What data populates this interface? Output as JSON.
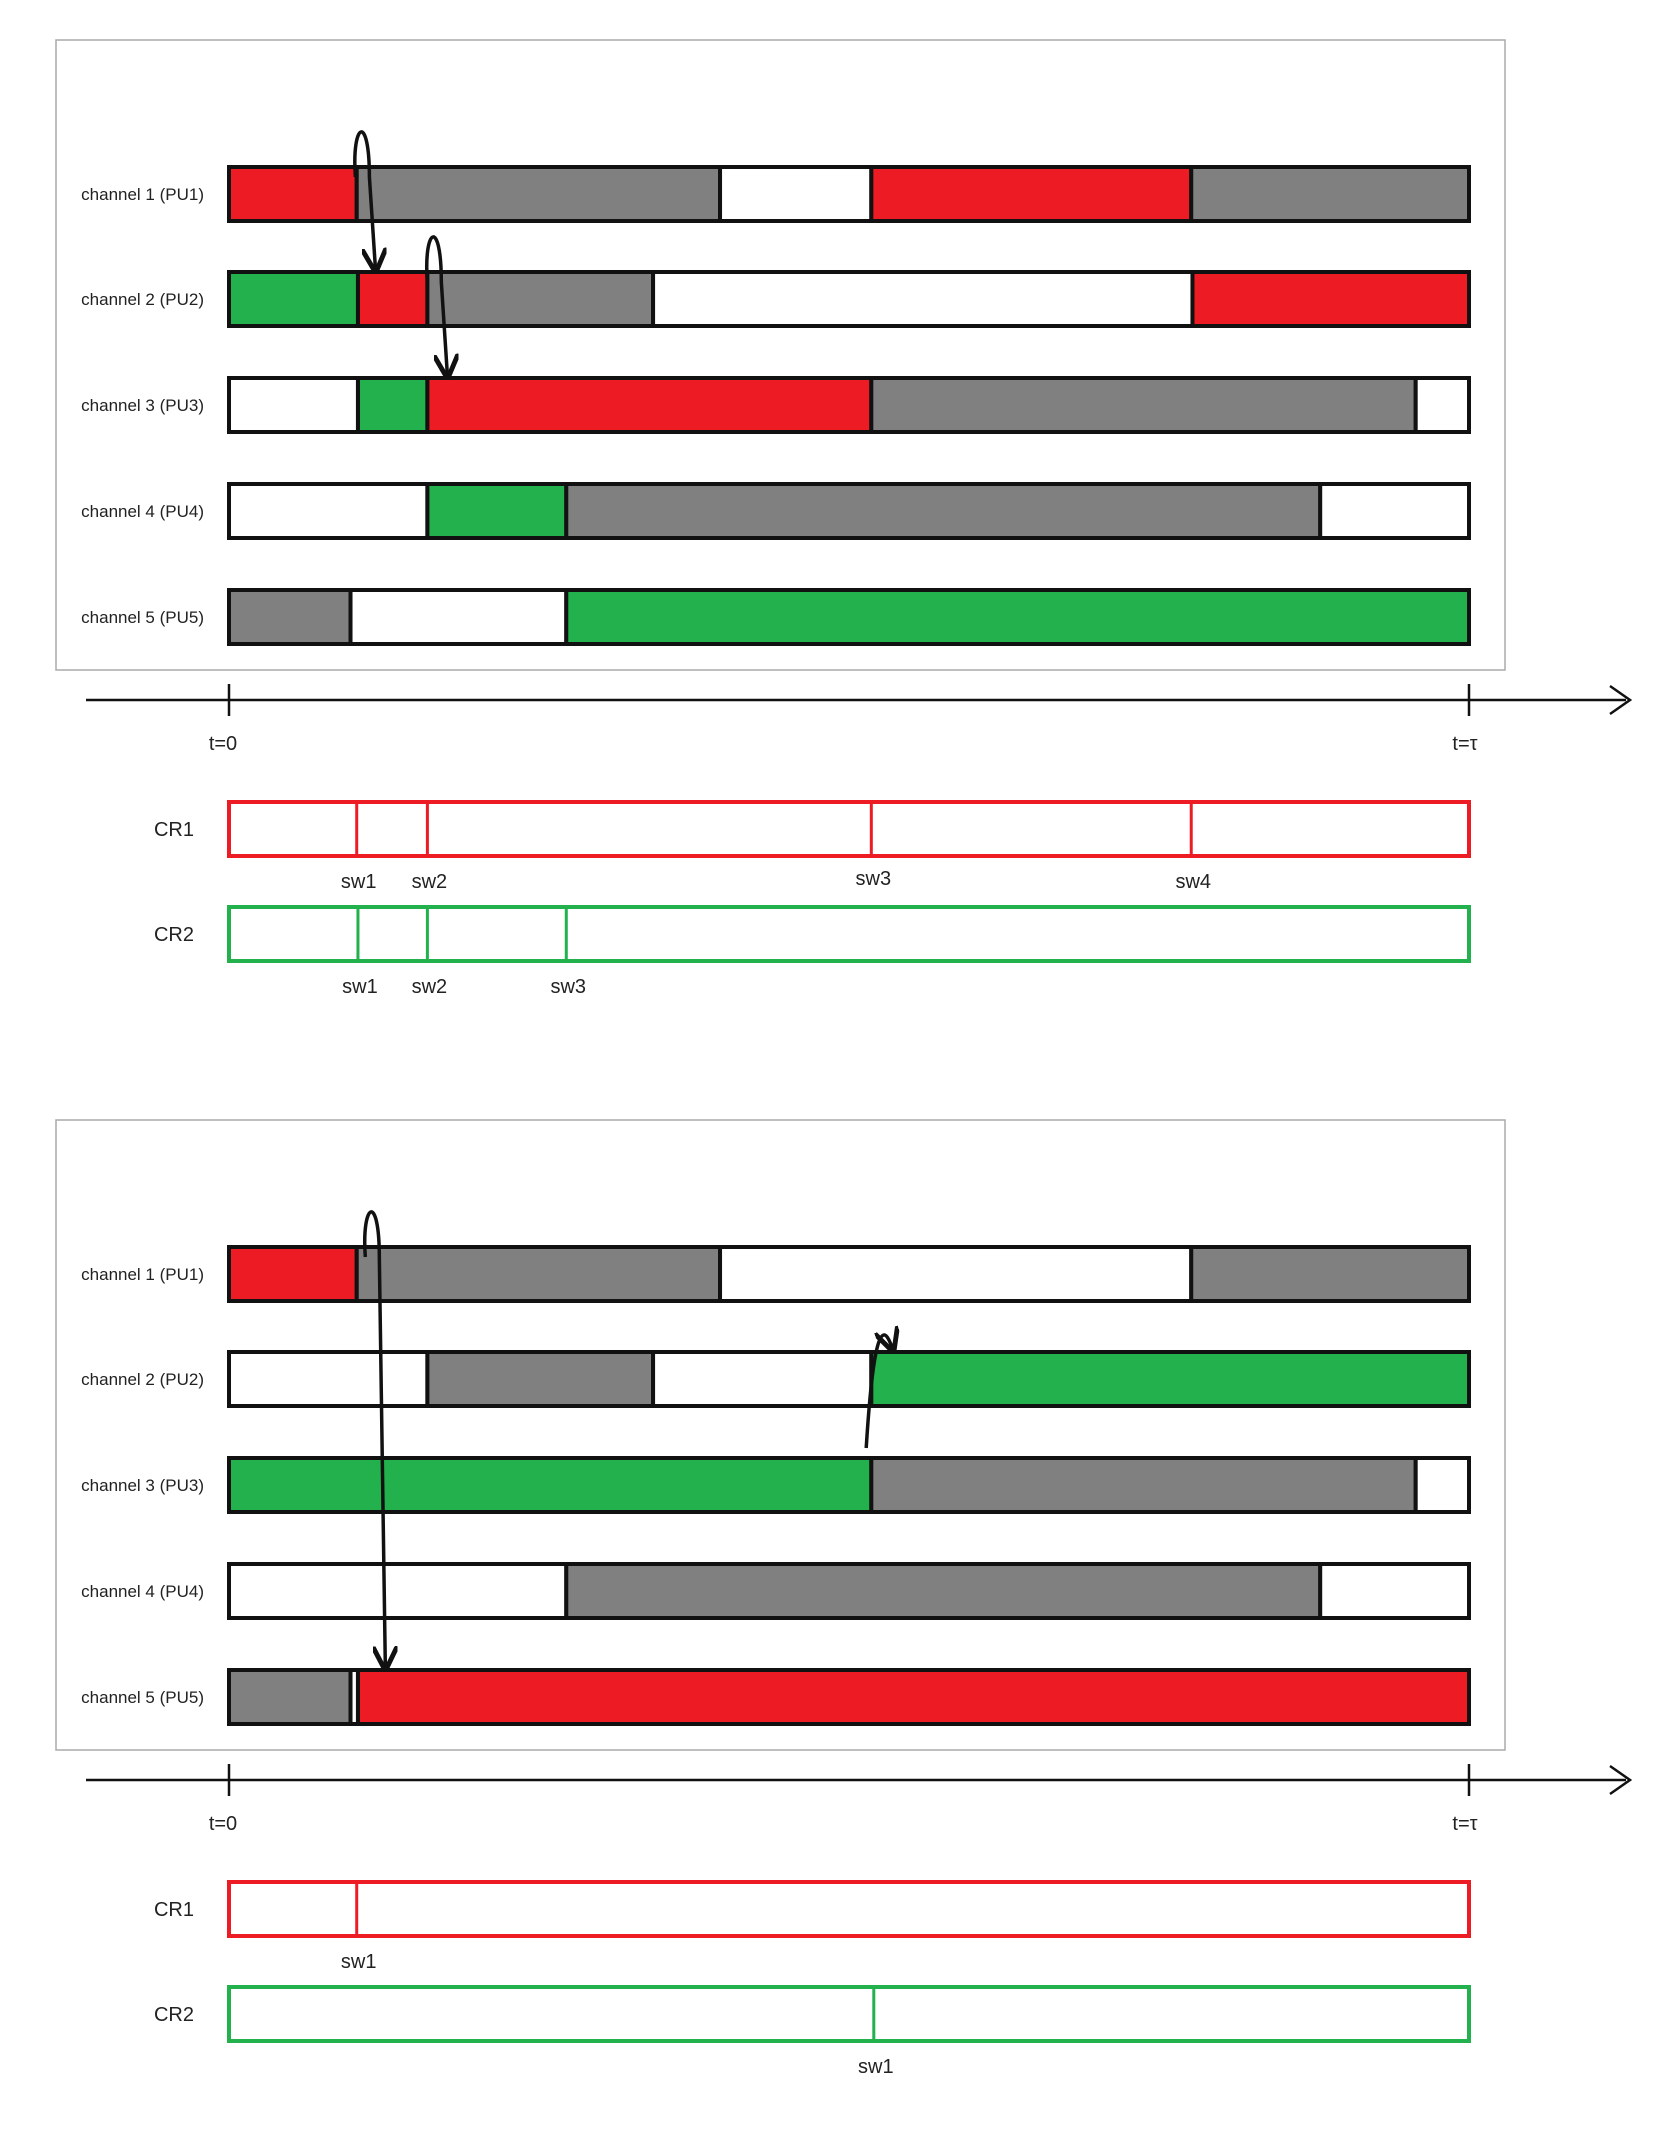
{
  "colors": {
    "red": "#ED1C24",
    "green": "#22B14C",
    "gray": "#808080",
    "white": "#FFFFFF",
    "outline": "#111111",
    "panel_border": "#AAAAAA"
  },
  "time_labels": {
    "start": "t=0",
    "end": "t=τ"
  },
  "panels": [
    {
      "channels": [
        {
          "label": "channel 1 (PU1)",
          "segments": [
            [
              "red",
              0,
              0.103
            ],
            [
              "gray",
              0.103,
              0.396
            ],
            [
              "white",
              0.396,
              0.518
            ],
            [
              "red",
              0.518,
              0.776
            ],
            [
              "gray",
              0.776,
              1
            ]
          ]
        },
        {
          "label": "channel 2 (PU2)",
          "segments": [
            [
              "green",
              0,
              0.104
            ],
            [
              "red",
              0.104,
              0.16
            ],
            [
              "gray",
              0.16,
              0.342
            ],
            [
              "white",
              0.342,
              0.777
            ],
            [
              "red",
              0.777,
              1
            ]
          ]
        },
        {
          "label": "channel 3 (PU3)",
          "segments": [
            [
              "white",
              0,
              0.104
            ],
            [
              "green",
              0.104,
              0.16
            ],
            [
              "red",
              0.16,
              0.518
            ],
            [
              "gray",
              0.518,
              0.957
            ],
            [
              "white",
              0.957,
              1
            ]
          ]
        },
        {
          "label": "channel 4 (PU4)",
          "segments": [
            [
              "white",
              0,
              0.16
            ],
            [
              "green",
              0.16,
              0.272
            ],
            [
              "gray",
              0.272,
              0.88
            ],
            [
              "white",
              0.88,
              1
            ]
          ]
        },
        {
          "label": "channel 5 (PU5)",
          "segments": [
            [
              "gray",
              0,
              0.098
            ],
            [
              "white",
              0.098,
              0.272
            ],
            [
              "green",
              0.272,
              1
            ]
          ]
        }
      ],
      "switch_arrows": [
        {
          "from_channel": 0,
          "to_channel": 1,
          "t": 0.11
        },
        {
          "from_channel": 1,
          "to_channel": 2,
          "t": 0.168
        }
      ],
      "cr_bars": [
        {
          "label": "CR1",
          "color": "red",
          "switches": [
            {
              "t": 0.103,
              "label": "sw1"
            },
            {
              "t": 0.16,
              "label": "sw2"
            },
            {
              "t": 0.518,
              "label": "sw3"
            },
            {
              "t": 0.776,
              "label": "sw4"
            }
          ]
        },
        {
          "label": "CR2",
          "color": "green",
          "switches": [
            {
              "t": 0.104,
              "label": "sw1"
            },
            {
              "t": 0.16,
              "label": "sw2"
            },
            {
              "t": 0.272,
              "label": "sw3"
            }
          ]
        }
      ]
    },
    {
      "channels": [
        {
          "label": "channel 1 (PU1)",
          "segments": [
            [
              "red",
              0,
              0.103
            ],
            [
              "gray",
              0.103,
              0.396
            ],
            [
              "white",
              0.396,
              0.776
            ],
            [
              "gray",
              0.776,
              1
            ]
          ]
        },
        {
          "label": "channel 2 (PU2)",
          "segments": [
            [
              "white",
              0,
              0.16
            ],
            [
              "gray",
              0.16,
              0.342
            ],
            [
              "white",
              0.342,
              0.518
            ],
            [
              "green",
              0.518,
              1
            ]
          ]
        },
        {
          "label": "channel 3 (PU3)",
          "segments": [
            [
              "green",
              0,
              0.518
            ],
            [
              "gray",
              0.518,
              0.957
            ],
            [
              "white",
              0.957,
              1
            ]
          ]
        },
        {
          "label": "channel 4 (PU4)",
          "segments": [
            [
              "white",
              0,
              0.272
            ],
            [
              "gray",
              0.272,
              0.88
            ],
            [
              "white",
              0.88,
              1
            ]
          ]
        },
        {
          "label": "channel 5 (PU5)",
          "segments": [
            [
              "gray",
              0,
              0.098
            ],
            [
              "white",
              0.098,
              0.104
            ],
            [
              "red",
              0.104,
              1
            ]
          ]
        }
      ],
      "switch_arrows": [
        {
          "from_channel": 0,
          "to_channel": 4,
          "t": 0.118
        },
        {
          "from_channel": 2,
          "to_channel": 1,
          "t": 0.53
        }
      ],
      "cr_bars": [
        {
          "label": "CR1",
          "color": "red",
          "switches": [
            {
              "t": 0.103,
              "label": "sw1"
            }
          ]
        },
        {
          "label": "CR2",
          "color": "green",
          "switches": [
            {
              "t": 0.52,
              "label": "sw1"
            }
          ]
        }
      ]
    }
  ]
}
